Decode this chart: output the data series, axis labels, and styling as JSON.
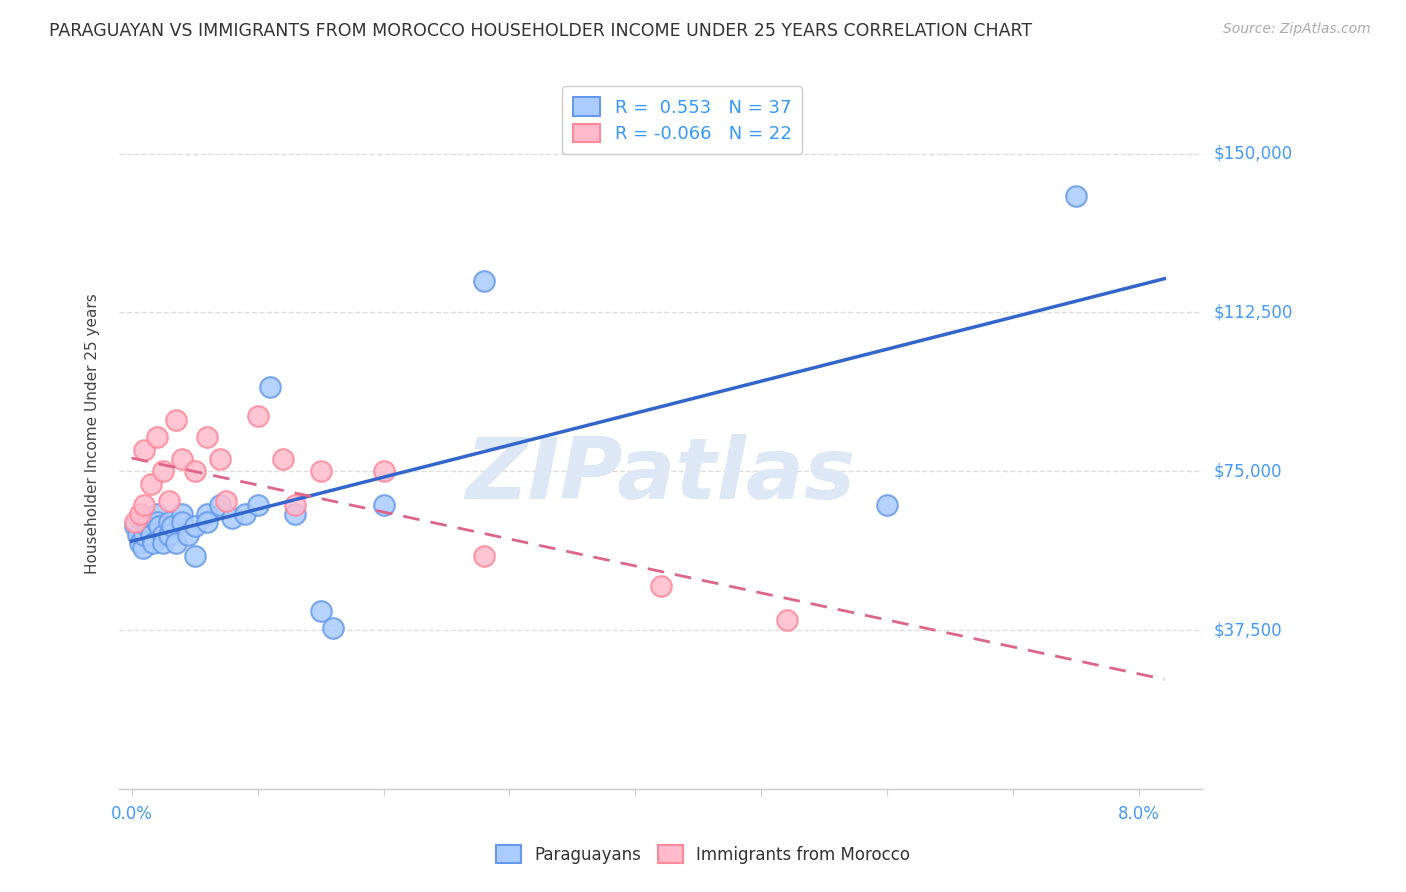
{
  "title": "PARAGUAYAN VS IMMIGRANTS FROM MOROCCO HOUSEHOLDER INCOME UNDER 25 YEARS CORRELATION CHART",
  "source": "Source: ZipAtlas.com",
  "ylabel": "Householder Income Under 25 years",
  "yticks_labels": [
    "$150,000",
    "$112,500",
    "$75,000",
    "$37,500"
  ],
  "yticks_values": [
    150000,
    112500,
    75000,
    37500
  ],
  "ymin": 0,
  "ymax": 168000,
  "xmin": -0.001,
  "xmax": 0.085,
  "background_color": "#ffffff",
  "grid_color": "#dddddd",
  "blue_face": "#aaccff",
  "blue_edge": "#6699ee",
  "pink_face": "#ffbbcc",
  "pink_edge": "#ff8899",
  "blue_line_color": "#3366cc",
  "pink_line_color": "#dd6688",
  "watermark_color": "#dce8f5",
  "paraguayans_label": "Paraguayans",
  "morocco_label": "Immigrants from Morocco",
  "paraguayans_x": [
    0.0003,
    0.0005,
    0.0007,
    0.0009,
    0.001,
    0.0012,
    0.0013,
    0.0015,
    0.0017,
    0.002,
    0.002,
    0.0022,
    0.0025,
    0.0025,
    0.003,
    0.003,
    0.0032,
    0.0035,
    0.004,
    0.004,
    0.0045,
    0.005,
    0.005,
    0.006,
    0.006,
    0.007,
    0.008,
    0.009,
    0.01,
    0.011,
    0.013,
    0.015,
    0.016,
    0.02,
    0.028,
    0.06,
    0.075
  ],
  "paraguayans_y": [
    62000,
    60000,
    58000,
    57000,
    60000,
    62000,
    63000,
    60000,
    58000,
    65000,
    63000,
    62000,
    60000,
    58000,
    63000,
    60000,
    62000,
    58000,
    65000,
    63000,
    60000,
    62000,
    55000,
    65000,
    63000,
    67000,
    64000,
    65000,
    67000,
    95000,
    65000,
    42000,
    38000,
    67000,
    120000,
    67000,
    140000
  ],
  "morocco_x": [
    0.0003,
    0.0007,
    0.001,
    0.001,
    0.0015,
    0.002,
    0.0025,
    0.003,
    0.0035,
    0.004,
    0.005,
    0.006,
    0.007,
    0.0075,
    0.01,
    0.012,
    0.013,
    0.015,
    0.02,
    0.028,
    0.042,
    0.052
  ],
  "morocco_y": [
    63000,
    65000,
    80000,
    67000,
    72000,
    83000,
    75000,
    68000,
    87000,
    78000,
    75000,
    83000,
    78000,
    68000,
    88000,
    78000,
    67000,
    75000,
    75000,
    55000,
    48000,
    40000
  ]
}
